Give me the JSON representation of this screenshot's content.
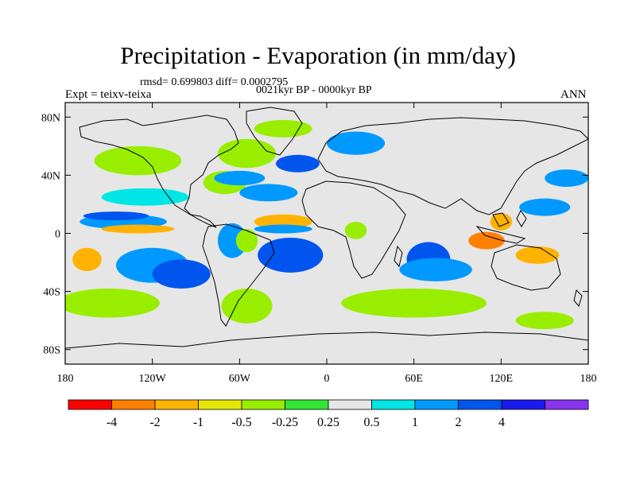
{
  "title": "Precipitation - Evaporation (in mm/day)",
  "stats": "rmsd= 0.699803 diff= 0.0002795",
  "periods": "0021kyr BP - 0000kyr BP",
  "experiment": "Expt = teixv-teixa",
  "season": "ANN",
  "y_ticks": [
    {
      "label": "80N",
      "lat": 80
    },
    {
      "label": "40N",
      "lat": 40
    },
    {
      "label": "0",
      "lat": 0
    },
    {
      "label": "40S",
      "lat": -40
    },
    {
      "label": "80S",
      "lat": -80
    }
  ],
  "x_ticks": [
    {
      "label": "180",
      "lon": -180
    },
    {
      "label": "120W",
      "lon": -120
    },
    {
      "label": "60W",
      "lon": -60
    },
    {
      "label": "0",
      "lon": 0
    },
    {
      "label": "60E",
      "lon": 60
    },
    {
      "label": "120E",
      "lon": 120
    },
    {
      "label": "180",
      "lon": 180
    }
  ],
  "colorbar": {
    "colors": [
      "#ff0000",
      "#ff8000",
      "#ffb300",
      "#e6e600",
      "#99ee00",
      "#33e633",
      "#e6e6e6",
      "#00e6e6",
      "#0099ff",
      "#0055ee",
      "#1a1aee",
      "#8833ee"
    ],
    "labels": [
      "-4",
      "-2",
      "-1",
      "-0.5",
      "-0.25",
      "0.25",
      "0.5",
      "1",
      "2",
      "4"
    ]
  },
  "background_color": "#e6e6e6",
  "chart_data": {
    "type": "heatmap",
    "variable": "Precipitation - Evaporation",
    "units": "mm/day",
    "x_range": [
      -180,
      180
    ],
    "y_range": [
      -90,
      90
    ],
    "levels": [
      -4,
      -2,
      -1,
      -0.5,
      -0.25,
      0.25,
      0.5,
      1,
      2,
      4
    ],
    "regions": [
      {
        "lon": -140,
        "lat": 8,
        "w": 60,
        "h": 5,
        "value": 1.5
      },
      {
        "lon": -145,
        "lat": 12,
        "w": 45,
        "h": 3,
        "value": 3
      },
      {
        "lon": -130,
        "lat": 3,
        "w": 50,
        "h": 3,
        "value": -1.5
      },
      {
        "lon": -165,
        "lat": -18,
        "w": 20,
        "h": 8,
        "value": -1.5
      },
      {
        "lon": -120,
        "lat": -22,
        "w": 50,
        "h": 12,
        "value": 1.5
      },
      {
        "lon": -100,
        "lat": -28,
        "w": 40,
        "h": 10,
        "value": 2.5
      },
      {
        "lon": -150,
        "lat": -48,
        "w": 70,
        "h": 10,
        "value": -0.4
      },
      {
        "lon": -55,
        "lat": -50,
        "w": 35,
        "h": 12,
        "value": -0.4
      },
      {
        "lon": -125,
        "lat": 25,
        "w": 60,
        "h": 6,
        "value": 0.6
      },
      {
        "lon": -130,
        "lat": 50,
        "w": 60,
        "h": 10,
        "value": -0.4
      },
      {
        "lon": -70,
        "lat": 35,
        "w": 30,
        "h": 8,
        "value": -0.4
      },
      {
        "lon": -60,
        "lat": 38,
        "w": 35,
        "h": 5,
        "value": 1.5
      },
      {
        "lon": -40,
        "lat": 28,
        "w": 40,
        "h": 6,
        "value": 1.5
      },
      {
        "lon": -30,
        "lat": 8,
        "w": 40,
        "h": 5,
        "value": -1.5
      },
      {
        "lon": -30,
        "lat": 3,
        "w": 40,
        "h": 3,
        "value": 1.5
      },
      {
        "lon": -25,
        "lat": -15,
        "w": 45,
        "h": 12,
        "value": 2.5
      },
      {
        "lon": -65,
        "lat": -5,
        "w": 20,
        "h": 12,
        "value": 1.5
      },
      {
        "lon": -20,
        "lat": 48,
        "w": 30,
        "h": 6,
        "value": 2.5
      },
      {
        "lon": -55,
        "lat": 55,
        "w": 40,
        "h": 10,
        "value": -0.4
      },
      {
        "lon": -30,
        "lat": 72,
        "w": 40,
        "h": 6,
        "value": -0.4
      },
      {
        "lon": 20,
        "lat": 62,
        "w": 40,
        "h": 8,
        "value": 1.5
      },
      {
        "lon": 70,
        "lat": -18,
        "w": 30,
        "h": 12,
        "value": 2.5
      },
      {
        "lon": 75,
        "lat": -25,
        "w": 50,
        "h": 8,
        "value": 1.5
      },
      {
        "lon": 110,
        "lat": -5,
        "w": 25,
        "h": 6,
        "value": -2.5
      },
      {
        "lon": 120,
        "lat": 8,
        "w": 15,
        "h": 6,
        "value": -1.5
      },
      {
        "lon": 150,
        "lat": 18,
        "w": 35,
        "h": 6,
        "value": 1.5
      },
      {
        "lon": 145,
        "lat": -15,
        "w": 30,
        "h": 6,
        "value": -1.5
      },
      {
        "lon": 165,
        "lat": 38,
        "w": 30,
        "h": 6,
        "value": 1.5
      },
      {
        "lon": 60,
        "lat": -48,
        "w": 100,
        "h": 10,
        "value": -0.4
      },
      {
        "lon": 150,
        "lat": -60,
        "w": 40,
        "h": 6,
        "value": -0.4
      },
      {
        "lon": 20,
        "lat": 2,
        "w": 15,
        "h": 6,
        "value": -0.4
      },
      {
        "lon": -55,
        "lat": -5,
        "w": 15,
        "h": 8,
        "value": -0.4
      }
    ]
  }
}
